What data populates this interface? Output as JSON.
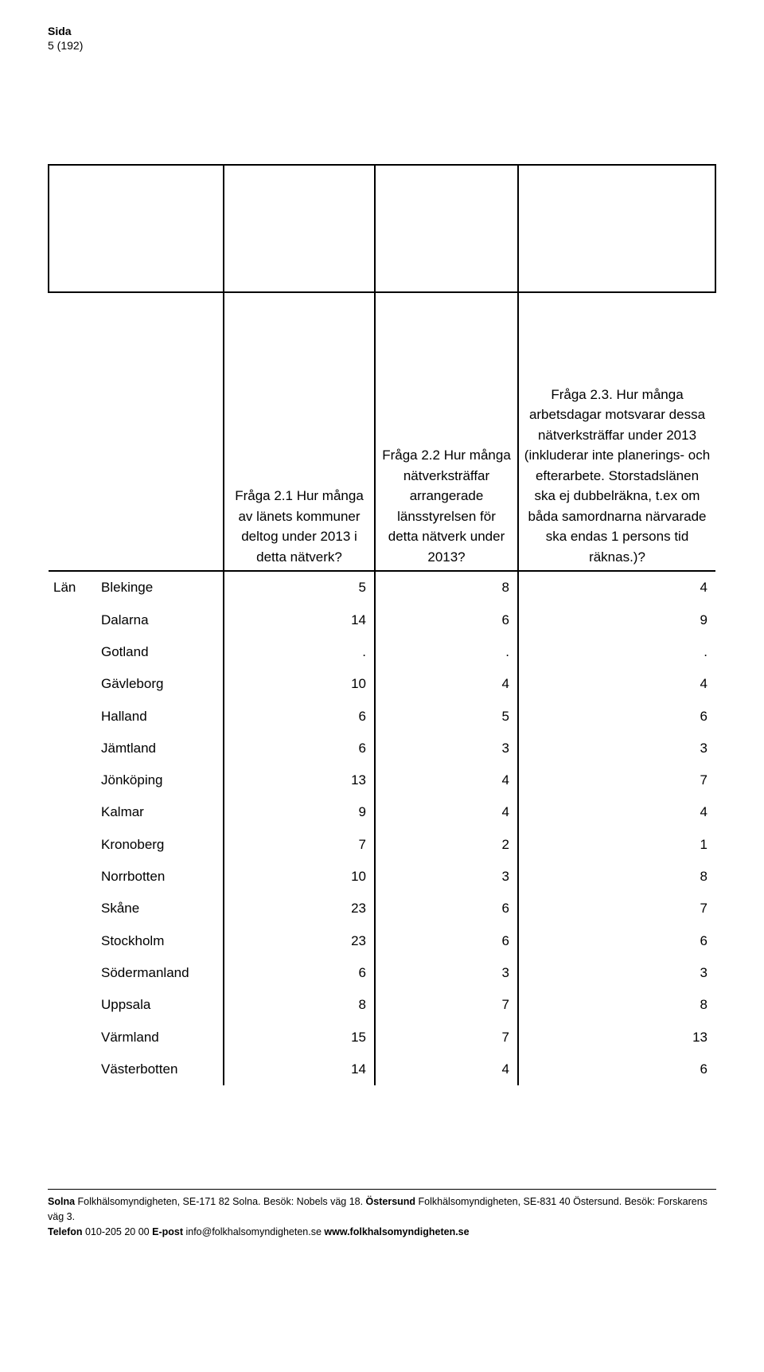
{
  "header": {
    "sida_label": "Sida",
    "page_num": "5 (192)"
  },
  "table": {
    "lan_label": "Län",
    "columns": {
      "q1": "Fråga 2.1 Hur många av länets kommuner deltog under 2013 i detta nätverk?",
      "q2": "Fråga 2.2 Hur många nätverksträffar arrangerade länsstyrelsen för detta nätverk under 2013?",
      "q3": "Fråga 2.3. Hur många arbetsdagar motsvarar dessa nätverksträffar under 2013 (inkluderar inte planerings- och efterarbete. Storstadslänen ska ej dubbelräkna, t.ex om båda samordnarna närvarade ska endas 1 persons tid räknas.)?"
    },
    "rows": [
      {
        "region": "Blekinge",
        "q1": "5",
        "q2": "8",
        "q3": "4"
      },
      {
        "region": "Dalarna",
        "q1": "14",
        "q2": "6",
        "q3": "9"
      },
      {
        "region": "Gotland",
        "q1": ".",
        "q2": ".",
        "q3": "."
      },
      {
        "region": "Gävleborg",
        "q1": "10",
        "q2": "4",
        "q3": "4"
      },
      {
        "region": "Halland",
        "q1": "6",
        "q2": "5",
        "q3": "6"
      },
      {
        "region": "Jämtland",
        "q1": "6",
        "q2": "3",
        "q3": "3"
      },
      {
        "region": "Jönköping",
        "q1": "13",
        "q2": "4",
        "q3": "7"
      },
      {
        "region": "Kalmar",
        "q1": "9",
        "q2": "4",
        "q3": "4"
      },
      {
        "region": "Kronoberg",
        "q1": "7",
        "q2": "2",
        "q3": "1"
      },
      {
        "region": "Norrbotten",
        "q1": "10",
        "q2": "3",
        "q3": "8"
      },
      {
        "region": "Skåne",
        "q1": "23",
        "q2": "6",
        "q3": "7"
      },
      {
        "region": "Stockholm",
        "q1": "23",
        "q2": "6",
        "q3": "6"
      },
      {
        "region": "Södermanland",
        "q1": "6",
        "q2": "3",
        "q3": "3"
      },
      {
        "region": "Uppsala",
        "q1": "8",
        "q2": "7",
        "q3": "8"
      },
      {
        "region": "Värmland",
        "q1": "15",
        "q2": "7",
        "q3": "13"
      },
      {
        "region": "Västerbotten",
        "q1": "14",
        "q2": "4",
        "q3": "6"
      }
    ]
  },
  "footer": {
    "line1_pre": "Solna",
    "line1_a": " Folkhälsomyndigheten, SE-171 82 Solna. Besök: Nobels väg 18. ",
    "line1_mid": "Östersund",
    "line1_b": " Folkhälsomyndigheten, SE-831 40 Östersund. Besök: Forskarens väg 3.",
    "line2_pre": "Telefon",
    "line2_a": " 010-205 20 00 ",
    "line2_mid": "E-post",
    "line2_b": " info@folkhalsomyndigheten.se ",
    "line2_end": "www.folkhalsomyndigheten.se"
  }
}
